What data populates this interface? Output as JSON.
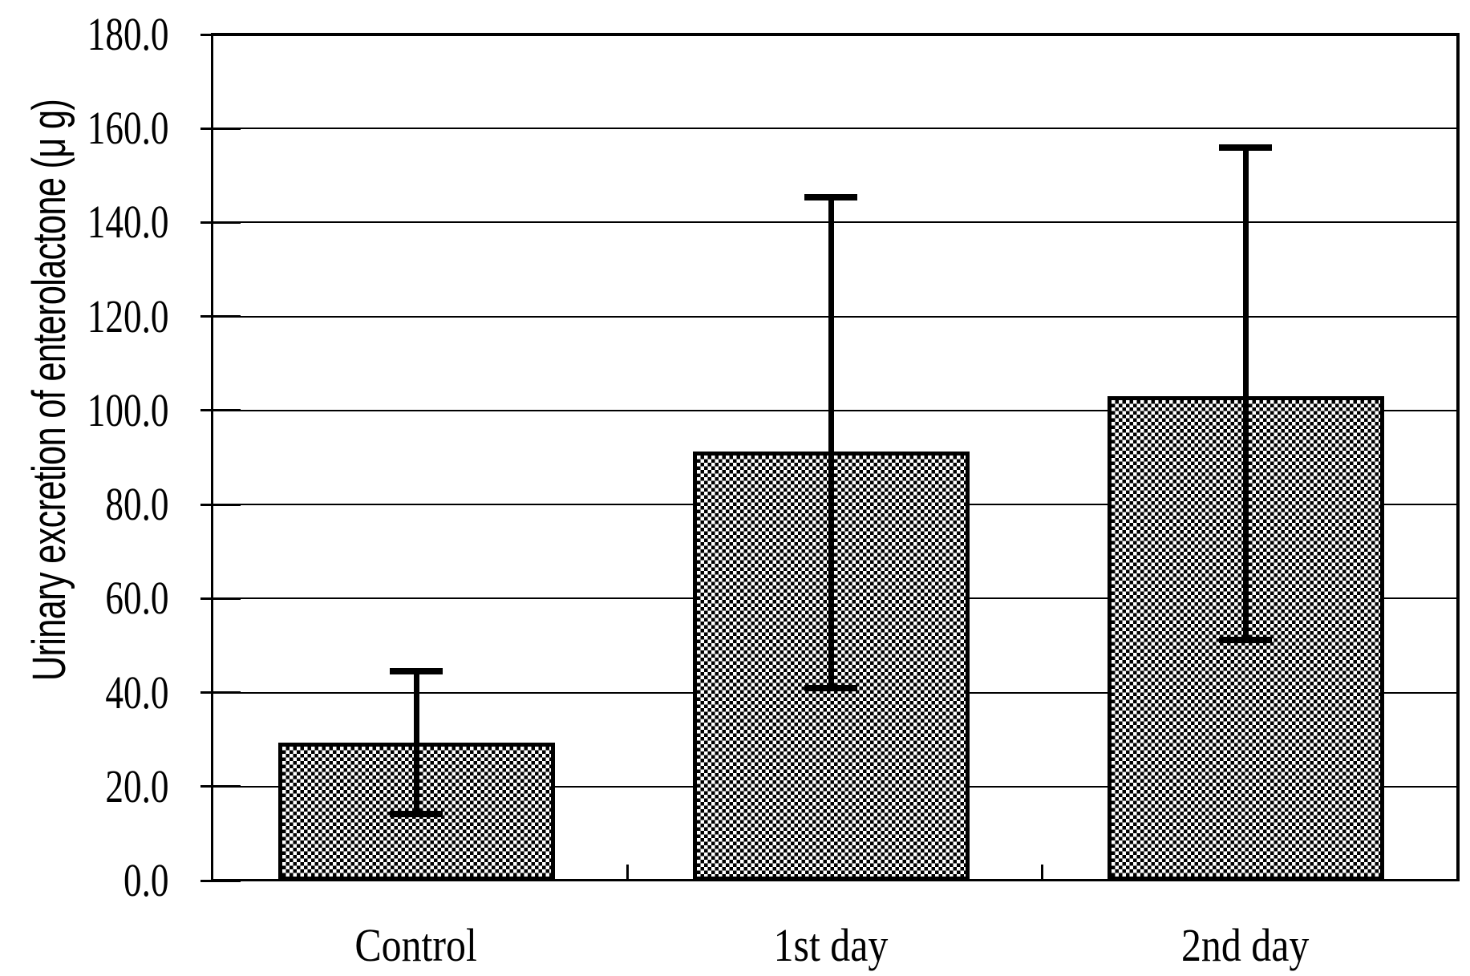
{
  "chart_data": {
    "type": "bar",
    "title": "",
    "ylabel": "Urinary excretion of enterolactone (μ g)",
    "xlabel": "",
    "categories": [
      "Control",
      "1st day",
      "2nd day"
    ],
    "values": [
      29.3,
      91.3,
      103.0
    ],
    "error_upper_cap": [
      44.6,
      145.3,
      156.0
    ],
    "error_lower_cap": [
      14.2,
      41.0,
      51.2
    ],
    "ylim": [
      0,
      180
    ],
    "ytick_step": 20,
    "ytick_labels": [
      "0.0",
      "20.0",
      "40.0",
      "60.0",
      "80.0",
      "100.0",
      "120.0",
      "140.0",
      "160.0",
      "180.0"
    ],
    "grid": true,
    "legend": "none",
    "bar_fill": "black-white-checkerboard-pattern",
    "colors": {
      "ink": "#000000",
      "paper": "#ffffff"
    }
  }
}
